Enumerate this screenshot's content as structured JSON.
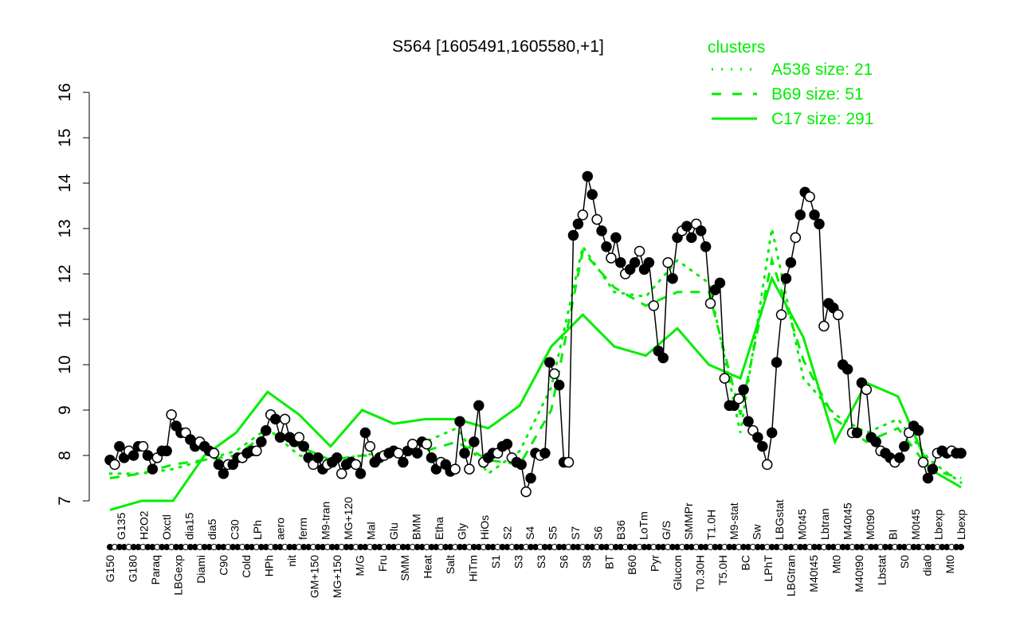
{
  "chart_data": {
    "type": "line",
    "title": "S564 [1605491,1605580,+1]",
    "xlabel": "",
    "ylabel": "",
    "ylim": [
      7,
      16
    ],
    "yticks": [
      7,
      8,
      9,
      10,
      11,
      12,
      13,
      14,
      15,
      16
    ],
    "grid": false,
    "legend": {
      "title": "clusters",
      "placement": "top-right",
      "color": "#00ee00",
      "entries": [
        {
          "label": "A536 size: 21",
          "style": "dotted"
        },
        {
          "label": "B69 size: 51",
          "style": "dashed"
        },
        {
          "label": "C17 size: 291",
          "style": "solid"
        }
      ]
    },
    "series": [
      {
        "style": "black-points",
        "color": "#000000",
        "values": [
          7.9,
          7.8,
          8.2,
          7.95,
          8.1,
          8.0,
          8.2,
          8.2,
          8.0,
          7.7,
          7.95,
          8.1,
          8.1,
          8.9,
          8.65,
          8.5,
          8.5,
          8.35,
          8.2,
          8.3,
          8.2,
          8.1,
          8.05,
          7.8,
          7.6,
          7.8,
          7.8,
          7.95,
          7.95,
          8.05,
          8.1,
          8.1,
          8.3,
          8.55,
          8.9,
          8.8,
          8.4,
          8.8,
          8.4,
          8.3,
          8.4,
          8.2,
          7.95,
          7.8,
          7.95,
          7.7,
          7.8,
          7.85,
          7.95,
          7.6,
          7.8,
          7.85,
          7.8,
          7.6,
          8.5,
          8.2,
          7.85,
          7.95,
          8.0,
          8.05,
          8.1,
          8.05,
          7.85,
          8.1,
          8.25,
          8.05,
          8.3,
          8.25,
          7.95,
          7.7,
          7.85,
          7.8,
          7.65,
          7.7,
          8.75,
          8.05,
          7.7,
          8.3,
          9.1,
          7.85,
          7.95,
          8.05,
          8.05,
          8.2,
          8.25,
          7.95,
          7.85,
          7.8,
          7.2,
          7.5,
          8.05,
          8.0,
          8.05,
          10.05,
          9.8,
          9.55,
          7.85,
          7.85,
          12.85,
          13.1,
          13.3,
          14.15,
          13.75,
          13.2,
          12.95,
          12.6,
          12.35,
          12.8,
          12.25,
          12.0,
          12.1,
          12.25,
          12.5,
          12.1,
          12.25,
          11.3,
          10.3,
          10.15,
          12.25,
          11.9,
          12.8,
          12.95,
          13.05,
          12.8,
          13.1,
          12.95,
          12.6,
          11.35,
          11.65,
          11.8,
          9.7,
          9.1,
          9.1,
          9.25,
          9.45,
          8.75,
          8.55,
          8.4,
          8.2,
          7.8,
          8.5,
          10.05,
          11.1,
          11.9,
          12.25,
          12.8,
          13.3,
          13.8,
          13.7,
          13.3,
          13.1,
          10.85,
          11.35,
          11.25,
          11.1,
          10.0,
          9.9,
          8.5,
          8.5,
          9.6,
          9.45,
          8.4,
          8.3,
          8.1,
          8.05,
          7.95,
          7.85,
          7.95,
          8.2,
          8.5,
          8.65,
          8.55,
          7.85,
          7.5,
          7.7,
          8.05,
          8.1,
          8.05,
          8.1,
          8.05,
          8.05
        ]
      },
      {
        "name": "A536 size: 21",
        "style": "dotted",
        "color": "#00ee00",
        "values": [
          7.6,
          7.6,
          7.7,
          7.9,
          8.1,
          8.6,
          8.0,
          7.9,
          8.0,
          8.1,
          8.3,
          8.6,
          7.6,
          8.1,
          9.5,
          12.6,
          11.6,
          11.5,
          12.3,
          11.8,
          8.5,
          13.0,
          9.7,
          8.9,
          8.5,
          8.8,
          7.9,
          7.4
        ]
      },
      {
        "name": "B69 size: 51",
        "style": "dashed",
        "color": "#00ee00",
        "values": [
          7.5,
          7.6,
          7.8,
          7.9,
          8.0,
          8.5,
          8.2,
          7.9,
          8.0,
          8.0,
          8.1,
          8.3,
          7.9,
          7.8,
          9.0,
          12.5,
          11.7,
          11.3,
          11.6,
          11.6,
          8.9,
          12.3,
          10.1,
          8.8,
          8.3,
          8.6,
          7.7,
          7.5
        ]
      },
      {
        "name": "C17 size: 291",
        "style": "solid",
        "color": "#00ee00",
        "values": [
          6.8,
          7.0,
          7.0,
          8.0,
          8.5,
          9.4,
          8.9,
          8.2,
          9.0,
          8.7,
          8.8,
          8.8,
          8.6,
          9.1,
          10.4,
          11.1,
          10.4,
          10.2,
          10.8,
          10.0,
          9.7,
          11.9,
          10.6,
          8.3,
          9.6,
          9.3,
          7.7,
          7.3
        ]
      }
    ],
    "x_tick_labels": [
      "G150",
      "G135",
      "G180",
      "H2O2",
      "Paraq",
      "Oxctl",
      "LBGexp",
      "dia15",
      "Diami",
      "dia5",
      "C90",
      "C30",
      "Cold",
      "LPh",
      "HPh",
      "aero",
      "nit",
      "ferm",
      "GM+150",
      "M9-tran",
      "MG+150",
      "MG+120",
      "M/G",
      "Mal",
      "Fru",
      "Glu",
      "SMM",
      "BMM",
      "Heat",
      "Etha",
      "Salt",
      "Gly",
      "HiTm",
      "HiOs",
      "S1",
      "S2",
      "S3",
      "S4",
      "S3",
      "S5",
      "S6",
      "S7",
      "S8",
      "S6",
      "BT",
      "B36",
      "B60",
      "LoTm",
      "Pyr",
      "G/S",
      "Glucon",
      "SMMPr",
      "T0.30H",
      "T1.0H",
      "T5.0H",
      "M9-stat",
      "BC",
      "Sw",
      "LPhT",
      "LBGstat",
      "LBGtran",
      "M0t45",
      "M40t45",
      "Lbtran",
      "Mt0",
      "M40t45",
      "M40t90",
      "M0t90",
      "Lbstat",
      "BI",
      "S0",
      "M0t45",
      "dia0",
      "Lbexp",
      "Mt0",
      "Lbexp"
    ]
  }
}
